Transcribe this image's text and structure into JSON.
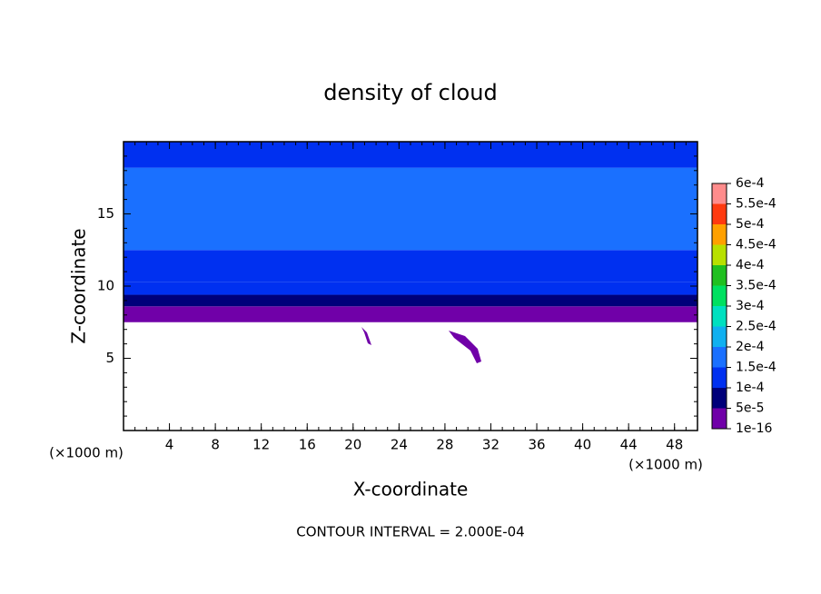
{
  "chart_data": {
    "type": "contour",
    "title": "density of cloud",
    "x_label": "X-coordinate",
    "y_label": "Z-coordinate",
    "x_unit": "(×1000 m)",
    "y_unit": "(×1000 m)",
    "footer": "CONTOUR INTERVAL = 2.000E-04",
    "xlim": [
      0,
      50
    ],
    "ylim": [
      0,
      20
    ],
    "xticks": [
      4,
      8,
      12,
      16,
      20,
      24,
      28,
      32,
      36,
      40,
      44,
      48
    ],
    "yticks": [
      5,
      10,
      15
    ],
    "profile": {
      "z_edges": [
        7.5,
        8.6,
        9.4,
        10.3,
        12.5,
        18.2,
        20
      ],
      "values": [
        2e-05,
        7e-05,
        0.00011,
        0.00013,
        0.00016,
        0.00012
      ]
    },
    "colorbar": {
      "levels": [
        1e-16,
        {
          "value": 5e-05,
          "label": "5e-5"
        },
        {
          "value": 0.0001,
          "label": "1e-4"
        },
        {
          "value": 0.00015,
          "label": "1.5e-4"
        },
        {
          "value": 0.0002,
          "label": "2e-4"
        },
        {
          "value": 0.00025,
          "label": "2.5e-4"
        },
        {
          "value": 0.0003,
          "label": "3e-4"
        },
        {
          "value": 0.00035,
          "label": "3.5e-4"
        },
        {
          "value": 0.0004,
          "label": "4e-4"
        },
        {
          "value": 0.00045,
          "label": "4.5e-4"
        },
        {
          "value": 0.0005,
          "label": "5e-4"
        },
        {
          "value": 0.00055,
          "label": "5.5e-4"
        },
        {
          "value": 0.0006,
          "label": "6e-4"
        }
      ],
      "colors": [
        "#7000a8",
        "#00007a",
        "#0030f0",
        "#1a70ff",
        "#10b0f0",
        "#00e0c0",
        "#00e060",
        "#20c020",
        "#b8e000",
        "#ffa000",
        "#ff3a10",
        "#ff8c8c"
      ]
    }
  }
}
